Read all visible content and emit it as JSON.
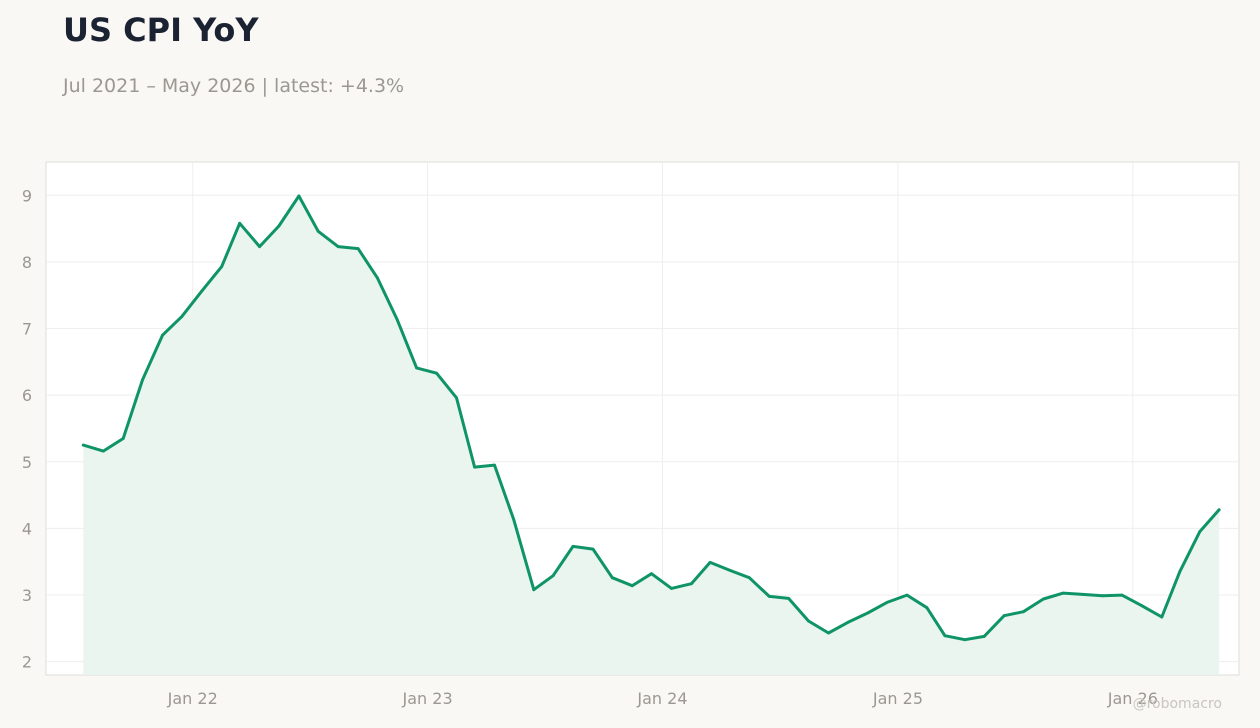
{
  "title": "US CPI YoY",
  "subtitle": "Jul 2021 – May 2026 | latest: +4.3%",
  "watermark": "@robomacro",
  "colors": {
    "line": "#0e9467",
    "fill": "#e9f4ef",
    "background": "#f9f8f5",
    "plot_background": "#ffffff",
    "grid": "#eeeeec",
    "tick_text": "#9b9891",
    "title": "#1b2333"
  },
  "chart_data": {
    "type": "area",
    "title": "US CPI YoY",
    "subtitle": "Jul 2021 – May 2026 | latest: +4.3%",
    "xlabel": "",
    "ylabel": "",
    "ylim": [
      1.8,
      9.5
    ],
    "yticks": [
      2,
      3,
      4,
      5,
      6,
      7,
      8,
      9
    ],
    "xlim": [
      "2021-05-18",
      "2026-06-15"
    ],
    "xticks": [
      {
        "label": "Jan 22",
        "date": "2022-01-01"
      },
      {
        "label": "Jan 23",
        "date": "2023-01-01"
      },
      {
        "label": "Jan 24",
        "date": "2024-01-01"
      },
      {
        "label": "Jan 25",
        "date": "2025-01-01"
      },
      {
        "label": "Jan 26",
        "date": "2026-01-01"
      }
    ],
    "grid": true,
    "legend": "none",
    "series": [
      {
        "x": [
          "2021-07",
          "2021-08",
          "2021-09",
          "2021-10",
          "2021-11",
          "2021-12",
          "2022-01",
          "2022-02",
          "2022-03",
          "2022-04",
          "2022-05",
          "2022-06",
          "2022-07",
          "2022-08",
          "2022-09",
          "2022-10",
          "2022-11",
          "2022-12",
          "2023-01",
          "2023-02",
          "2023-03",
          "2023-04",
          "2023-05",
          "2023-06",
          "2023-07",
          "2023-08",
          "2023-09",
          "2023-10",
          "2023-11",
          "2023-12",
          "2024-01",
          "2024-02",
          "2024-03",
          "2024-04",
          "2024-05",
          "2024-06",
          "2024-07",
          "2024-08",
          "2024-09",
          "2024-10",
          "2024-11",
          "2024-12",
          "2025-01",
          "2025-02",
          "2025-03",
          "2025-04",
          "2025-05",
          "2025-06",
          "2025-07",
          "2025-08",
          "2025-09",
          "2025-10",
          "2025-11",
          "2025-12",
          "2026-01",
          "2026-02",
          "2026-03",
          "2026-04",
          "2026-05"
        ],
        "values": [
          5.25,
          5.16,
          5.35,
          6.23,
          6.9,
          7.18,
          7.56,
          7.93,
          8.58,
          8.23,
          8.54,
          8.99,
          8.46,
          8.23,
          8.2,
          7.76,
          7.13,
          6.41,
          6.33,
          5.96,
          4.92,
          4.95,
          4.13,
          3.08,
          3.29,
          3.73,
          3.69,
          3.26,
          3.14,
          3.32,
          3.1,
          3.17,
          3.49,
          3.37,
          3.26,
          2.98,
          2.95,
          2.61,
          2.43,
          2.59,
          2.73,
          2.89,
          3.0,
          2.81,
          2.39,
          2.33,
          2.38,
          2.69,
          2.75,
          2.94,
          3.03,
          3.01,
          2.99,
          3.0,
          2.84,
          2.67,
          3.35,
          3.95,
          4.28
        ]
      }
    ]
  }
}
